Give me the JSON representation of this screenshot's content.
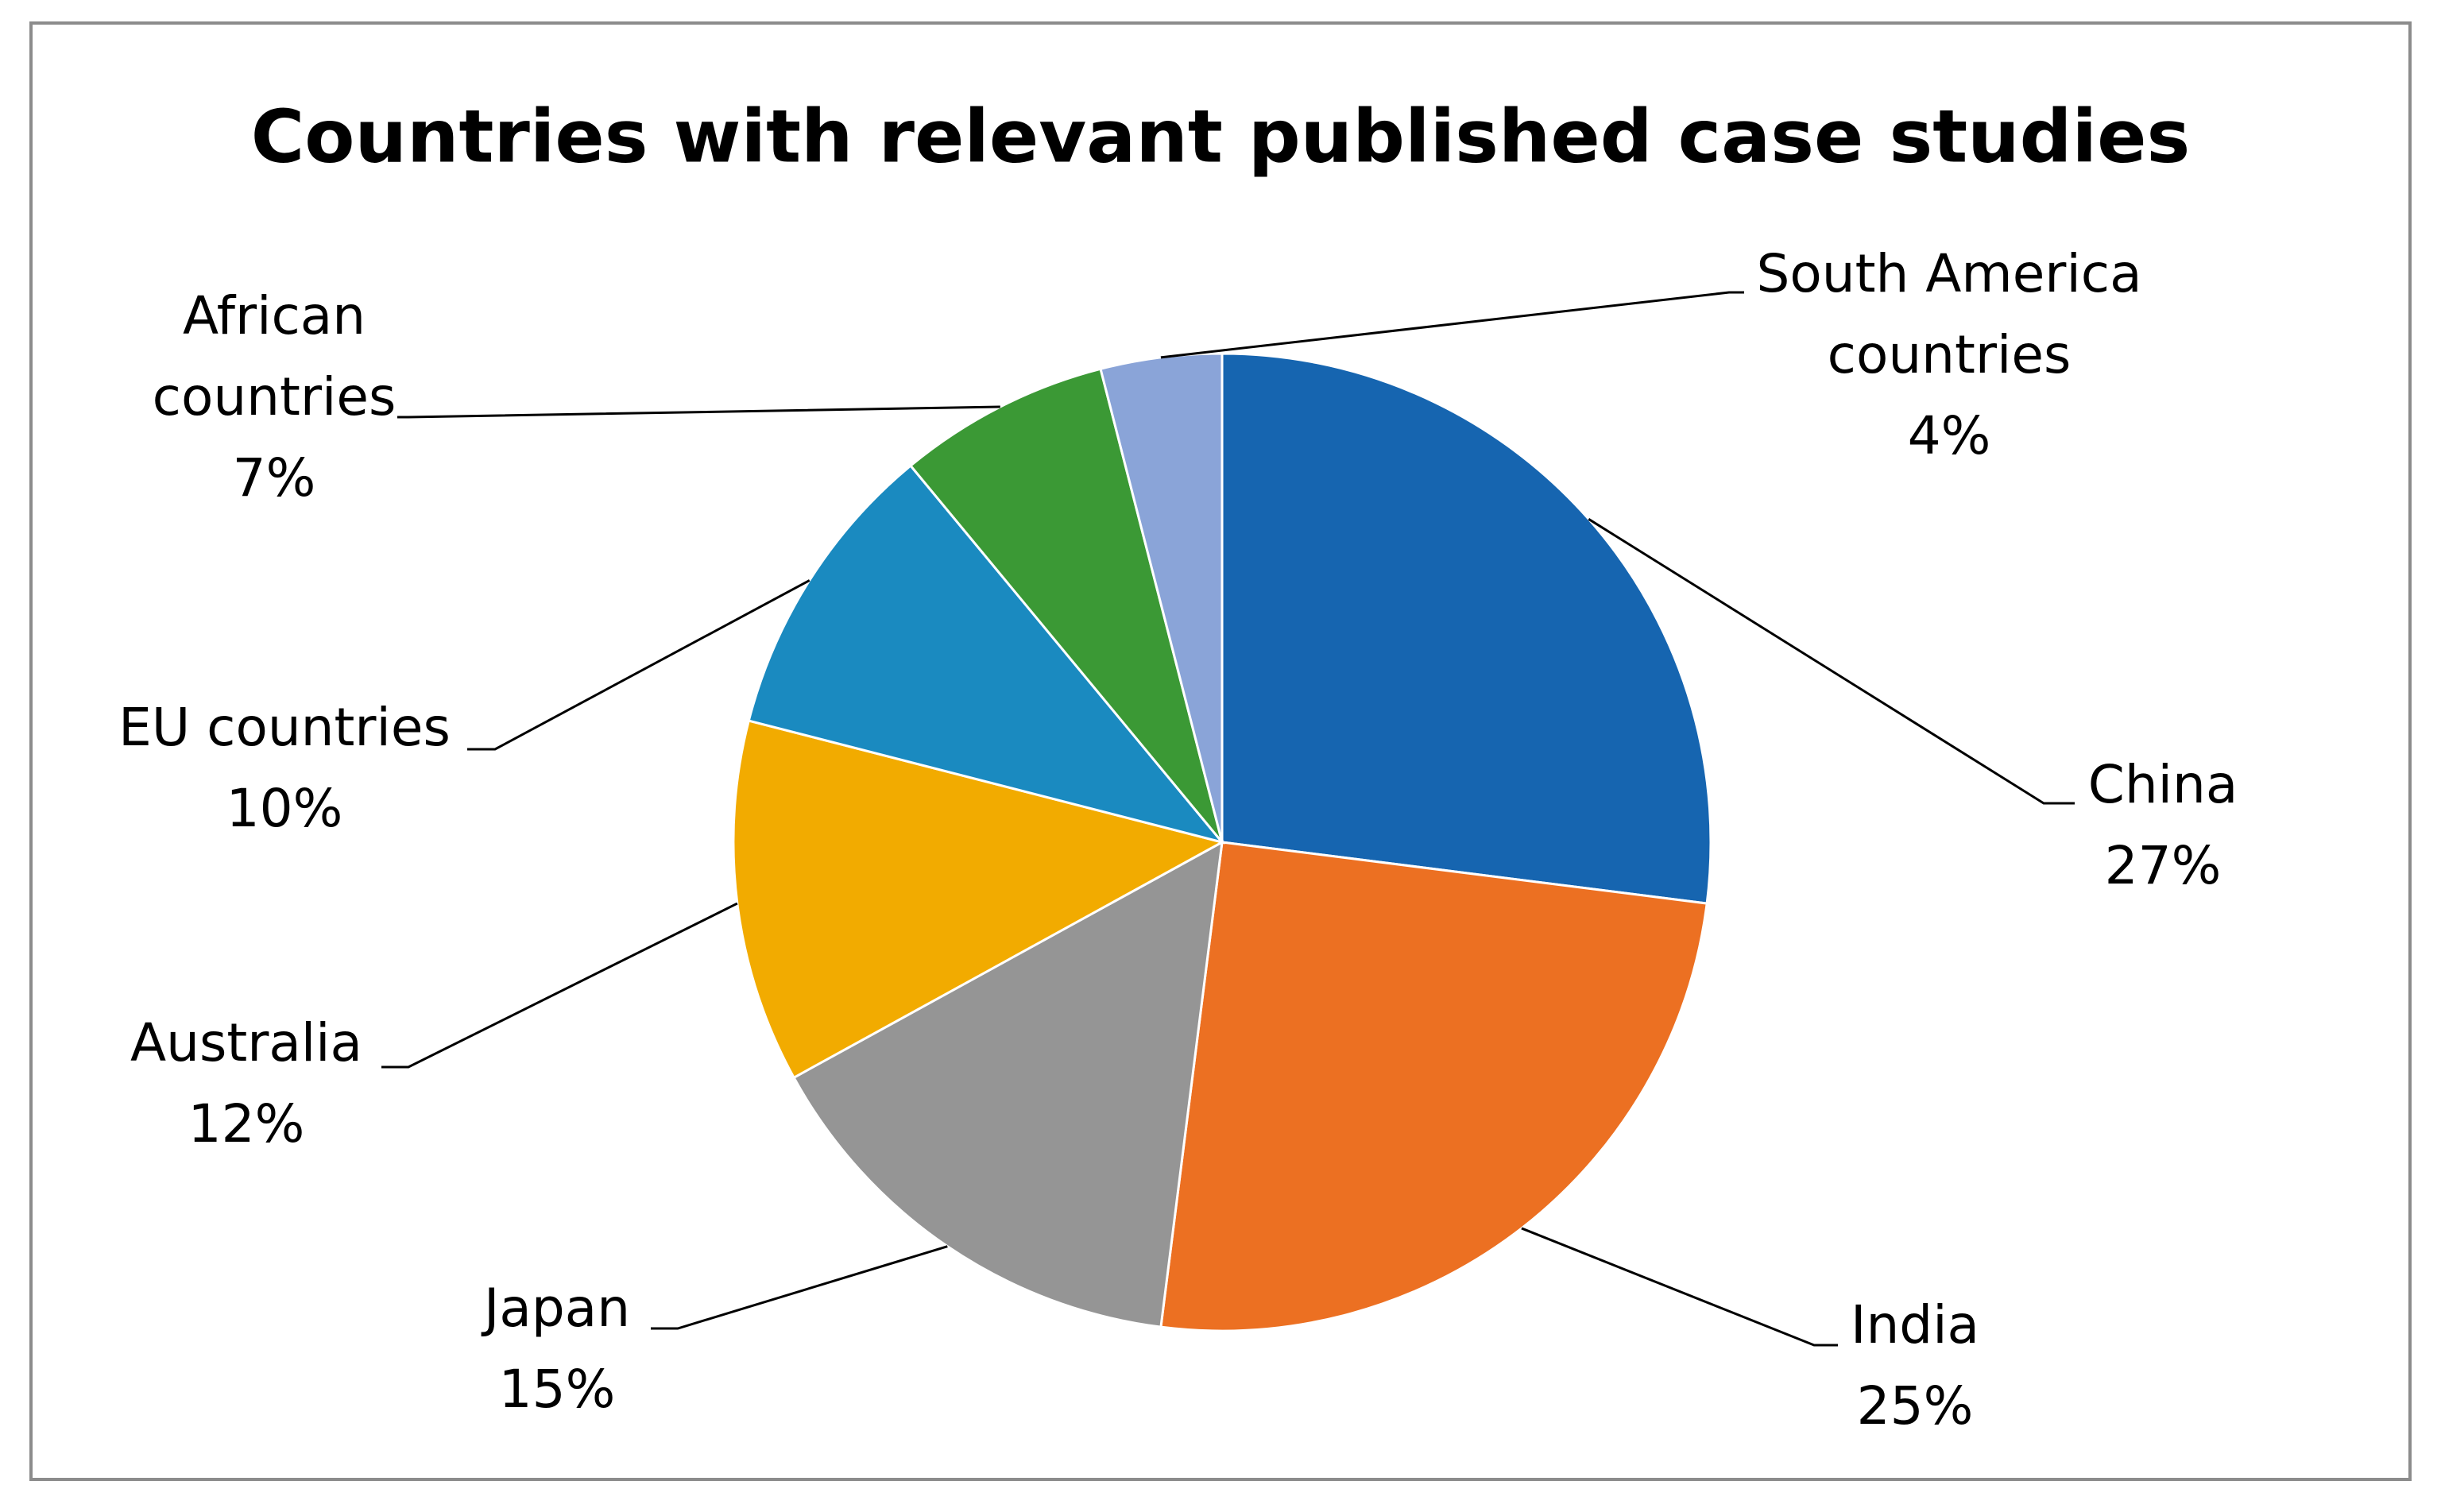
{
  "chart_data": {
    "type": "pie",
    "title": "Countries with relevant published case studies",
    "categories": [
      "China",
      "India",
      "Japan",
      "Australia",
      "EU countries",
      "African countries",
      "South America countries"
    ],
    "values": [
      27,
      25,
      15,
      12,
      10,
      7,
      4
    ],
    "value_labels": [
      "27%",
      "25%",
      "15%",
      "12%",
      "10%",
      "7%",
      "4%"
    ],
    "colors": [
      "#1665b0",
      "#ec7022",
      "#959595",
      "#f2ab00",
      "#1a8ac0",
      "#3b9935",
      "#8aa4d8"
    ]
  }
}
